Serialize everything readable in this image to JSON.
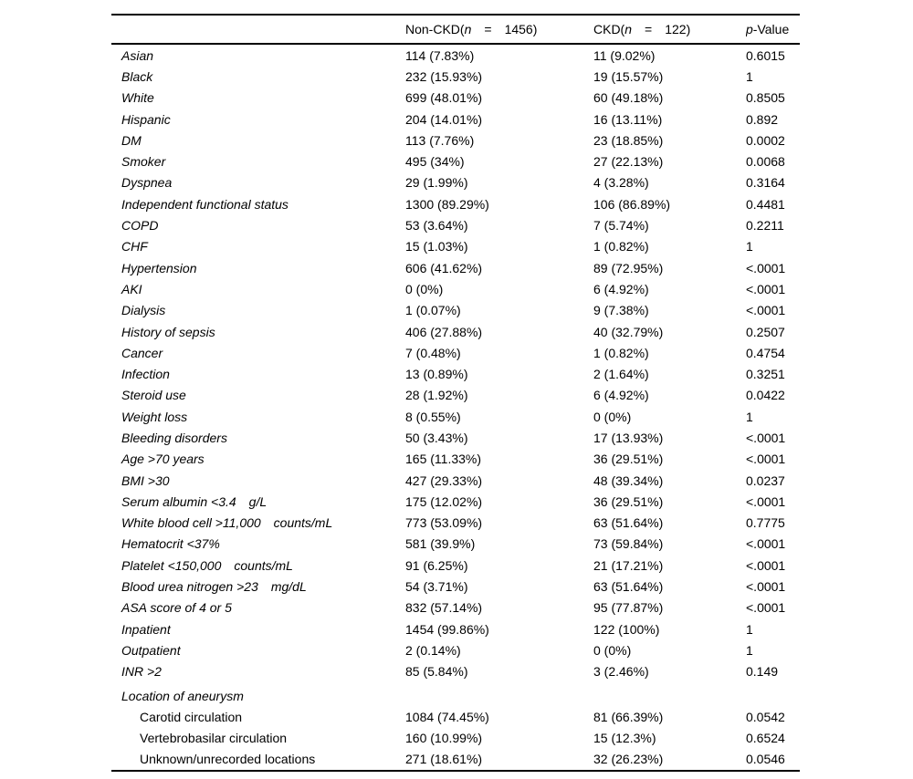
{
  "table": {
    "title_semantic": "Baseline characteristics: Non-CKD vs CKD",
    "header": {
      "columns": [
        {
          "name": "column-header-non-ckd",
          "parts": [
            {
              "t": "Non-CKD(",
              "i": 0
            },
            {
              "t": "n",
              "i": 1
            },
            {
              "t": "  =  ",
              "i": 0
            },
            {
              "t": "1456)",
              "i": 0
            }
          ]
        },
        {
          "name": "column-header-ckd",
          "parts": [
            {
              "t": "CKD(",
              "i": 0
            },
            {
              "t": "n",
              "i": 1
            },
            {
              "t": "  =  ",
              "i": 0
            },
            {
              "t": "122)",
              "i": 0
            }
          ]
        },
        {
          "name": "column-header-p-value",
          "parts": [
            {
              "t": "p",
              "i": 1
            },
            {
              "t": "-Value",
              "i": 0
            }
          ]
        }
      ]
    },
    "rows": [
      {
        "label": "Asian",
        "variant": "italic",
        "non_ckd": "114 (7.83%)",
        "ckd": "11 (9.02%)",
        "p": "0.6015"
      },
      {
        "label": "Black",
        "variant": "italic",
        "non_ckd": "232 (15.93%)",
        "ckd": "19 (15.57%)",
        "p": "1"
      },
      {
        "label": "White",
        "variant": "italic",
        "non_ckd": "699 (48.01%)",
        "ckd": "60 (49.18%)",
        "p": "0.8505"
      },
      {
        "label": "Hispanic",
        "variant": "italic",
        "non_ckd": "204 (14.01%)",
        "ckd": "16 (13.11%)",
        "p": "0.892"
      },
      {
        "label": "DM",
        "variant": "italic",
        "non_ckd": "113 (7.76%)",
        "ckd": "23 (18.85%)",
        "p": "0.0002"
      },
      {
        "label": "Smoker",
        "variant": "italic",
        "non_ckd": "495 (34%)",
        "ckd": "27 (22.13%)",
        "p": "0.0068"
      },
      {
        "label": "Dyspnea",
        "variant": "italic",
        "non_ckd": "29 (1.99%)",
        "ckd": "4 (3.28%)",
        "p": "0.3164"
      },
      {
        "label": "Independent functional status",
        "variant": "italic",
        "non_ckd": "1300 (89.29%)",
        "ckd": "106 (86.89%)",
        "p": "0.4481"
      },
      {
        "label": "COPD",
        "variant": "italic",
        "non_ckd": "53 (3.64%)",
        "ckd": "7 (5.74%)",
        "p": "0.2211"
      },
      {
        "label": "CHF",
        "variant": "italic",
        "non_ckd": "15 (1.03%)",
        "ckd": "1 (0.82%)",
        "p": "1"
      },
      {
        "label": "Hypertension",
        "variant": "italic",
        "non_ckd": "606 (41.62%)",
        "ckd": "89 (72.95%)",
        "p": "<.0001"
      },
      {
        "label": "AKI",
        "variant": "italic",
        "non_ckd": "0 (0%)",
        "ckd": "6 (4.92%)",
        "p": "<.0001"
      },
      {
        "label": "Dialysis",
        "variant": "italic",
        "non_ckd": "1 (0.07%)",
        "ckd": "9 (7.38%)",
        "p": "<.0001"
      },
      {
        "label": "History of sepsis",
        "variant": "italic",
        "non_ckd": "406 (27.88%)",
        "ckd": "40 (32.79%)",
        "p": "0.2507"
      },
      {
        "label": "Cancer",
        "variant": "italic",
        "non_ckd": "7 (0.48%)",
        "ckd": "1 (0.82%)",
        "p": "0.4754"
      },
      {
        "label": "Infection",
        "variant": "italic",
        "non_ckd": "13 (0.89%)",
        "ckd": "2 (1.64%)",
        "p": "0.3251"
      },
      {
        "label": "Steroid use",
        "variant": "italic",
        "non_ckd": "28 (1.92%)",
        "ckd": "6 (4.92%)",
        "p": "0.0422"
      },
      {
        "label": "Weight loss",
        "variant": "italic",
        "non_ckd": "8 (0.55%)",
        "ckd": "0 (0%)",
        "p": "1"
      },
      {
        "label": "Bleeding disorders",
        "variant": "italic",
        "non_ckd": "50 (3.43%)",
        "ckd": "17 (13.93%)",
        "p": "<.0001"
      },
      {
        "label": "Age >70 years",
        "variant": "italic",
        "non_ckd": "165 (11.33%)",
        "ckd": "36 (29.51%)",
        "p": "<.0001"
      },
      {
        "label": "BMI >30",
        "variant": "italic",
        "non_ckd": "427 (29.33%)",
        "ckd": "48 (39.34%)",
        "p": "0.0237"
      },
      {
        "label": "Serum albumin <3.4  g/L",
        "variant": "italic",
        "non_ckd": "175 (12.02%)",
        "ckd": "36 (29.51%)",
        "p": "<.0001"
      },
      {
        "label": "White blood cell >11,000  counts/mL",
        "variant": "italic",
        "non_ckd": "773 (53.09%)",
        "ckd": "63 (51.64%)",
        "p": "0.7775"
      },
      {
        "label": "Hematocrit <37%",
        "variant": "italic",
        "non_ckd": "581 (39.9%)",
        "ckd": "73 (59.84%)",
        "p": "<.0001"
      },
      {
        "label": "Platelet <150,000  counts/mL",
        "variant": "italic",
        "non_ckd": "91 (6.25%)",
        "ckd": "21 (17.21%)",
        "p": "<.0001"
      },
      {
        "label": "Blood urea nitrogen >23  mg/dL",
        "variant": "italic",
        "non_ckd": "54 (3.71%)",
        "ckd": "63 (51.64%)",
        "p": "<.0001"
      },
      {
        "label": "ASA score of 4 or 5",
        "variant": "italic",
        "non_ckd": "832 (57.14%)",
        "ckd": "95 (77.87%)",
        "p": "<.0001"
      },
      {
        "label": "Inpatient",
        "variant": "italic",
        "non_ckd": "1454 (99.86%)",
        "ckd": "122 (100%)",
        "p": "1"
      },
      {
        "label": "Outpatient",
        "variant": "italic",
        "non_ckd": "2 (0.14%)",
        "ckd": "0 (0%)",
        "p": "1"
      },
      {
        "label": "INR >2",
        "variant": "italic",
        "non_ckd": "85 (5.84%)",
        "ckd": "3 (2.46%)",
        "p": "0.149"
      },
      {
        "label": "Location of aneurysm",
        "variant": "section",
        "non_ckd": "",
        "ckd": "",
        "p": ""
      },
      {
        "label": "Carotid circulation",
        "variant": "sub",
        "non_ckd": "1084 (74.45%)",
        "ckd": "81 (66.39%)",
        "p": "0.0542"
      },
      {
        "label": "Vertebrobasilar circulation",
        "variant": "sub",
        "non_ckd": "160 (10.99%)",
        "ckd": "15 (12.3%)",
        "p": "0.6524"
      },
      {
        "label": "Unknown/unrecorded locations",
        "variant": "sub",
        "non_ckd": "271 (18.61%)",
        "ckd": "32 (26.23%)",
        "p": "0.0546"
      }
    ]
  }
}
